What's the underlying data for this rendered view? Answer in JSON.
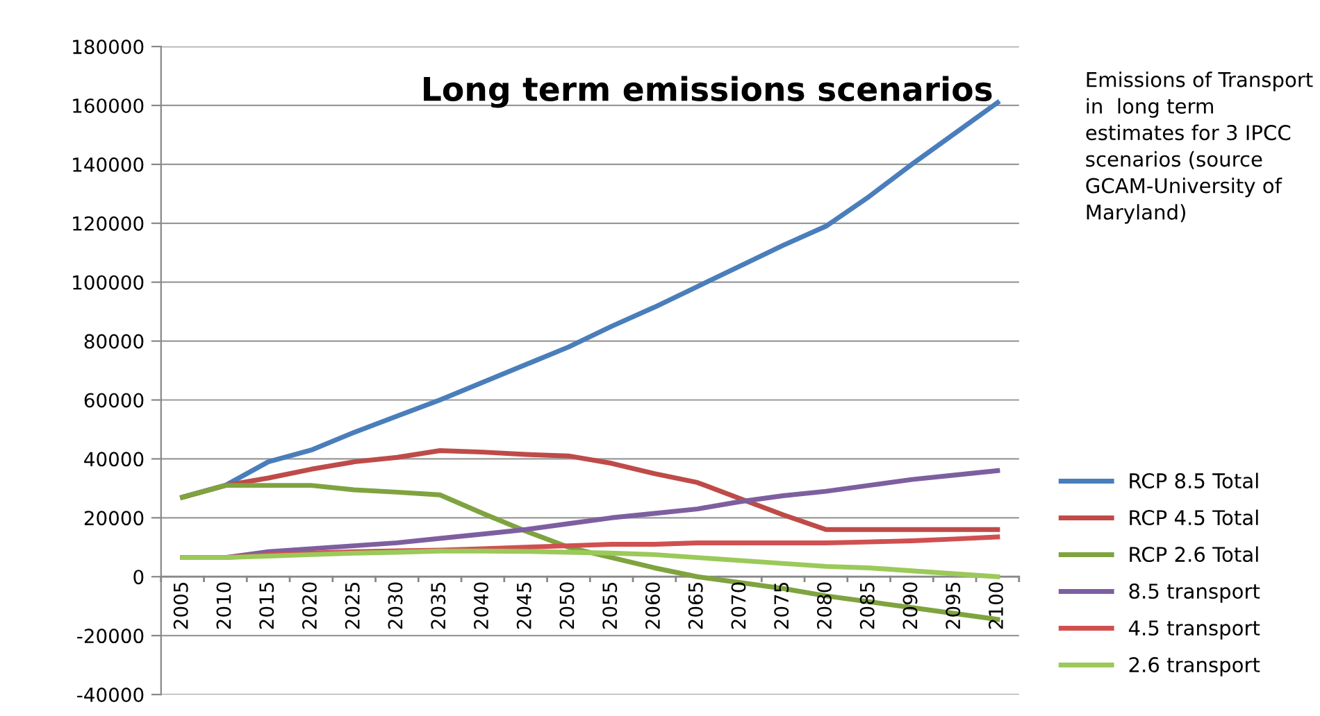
{
  "chart_data": {
    "type": "line",
    "title": "Long term emissions scenarios",
    "annotations": [
      "Emissions of Transport in  long term estimates for 3 IPCC scenarios (source GCAM-University of Maryland)"
    ],
    "categories": [
      "2005",
      "2010",
      "2015",
      "2020",
      "2025",
      "2030",
      "2035",
      "2040",
      "2045",
      "2050",
      "2055",
      "2060",
      "2065",
      "2070",
      "2075",
      "2080",
      "2085",
      "2090",
      "2095",
      "2100"
    ],
    "series": [
      {
        "name": "RCP 8.5 Total",
        "color": "#4a7ebb",
        "values": [
          27000,
          31000,
          39000,
          43000,
          49000,
          54500,
          60000,
          66000,
          72000,
          78000,
          85000,
          91500,
          98500,
          105500,
          112500,
          119000,
          129000,
          140000,
          150500,
          161000
        ]
      },
      {
        "name": "RCP 4.5 Total",
        "color": "#be4b48",
        "values": [
          27000,
          31000,
          33500,
          36500,
          39000,
          40500,
          42800,
          42300,
          41500,
          41000,
          38500,
          35000,
          32000,
          26500,
          21000,
          16000,
          16000,
          16000,
          16000,
          16000
        ]
      },
      {
        "name": "RCP 2.6 Total",
        "color": "#7fa33f",
        "values": [
          27000,
          31000,
          31000,
          31000,
          29500,
          28700,
          27800,
          21500,
          15500,
          10000,
          6500,
          3000,
          0,
          -2000,
          -4000,
          -6500,
          -8500,
          -10500,
          -12500,
          -14500
        ]
      },
      {
        "name": "8.5 transport",
        "color": "#7d5fa0",
        "values": [
          6500,
          6500,
          8500,
          9500,
          10500,
          11500,
          13000,
          14500,
          16000,
          18000,
          20000,
          21500,
          23000,
          25500,
          27500,
          29000,
          31000,
          33000,
          34500,
          36000
        ]
      },
      {
        "name": "4.5 transport",
        "color": "#d05050",
        "values": [
          6500,
          6500,
          7500,
          8000,
          8500,
          8800,
          9000,
          9500,
          10000,
          10500,
          11000,
          11000,
          11500,
          11500,
          11500,
          11500,
          11800,
          12200,
          12800,
          13500
        ]
      },
      {
        "name": "2.6 transport",
        "color": "#9bc95a",
        "values": [
          6500,
          6500,
          7000,
          7500,
          8000,
          8300,
          8700,
          8700,
          8600,
          8300,
          8000,
          7500,
          6500,
          5500,
          4500,
          3500,
          3000,
          2000,
          1000,
          0
        ]
      }
    ],
    "ylim": [
      -40000,
      180000
    ],
    "yticks": [
      -40000,
      -20000,
      0,
      20000,
      40000,
      60000,
      80000,
      100000,
      120000,
      140000,
      160000,
      180000
    ],
    "grid": "y",
    "legend": "right",
    "marker": "none",
    "line_style": "solid"
  }
}
